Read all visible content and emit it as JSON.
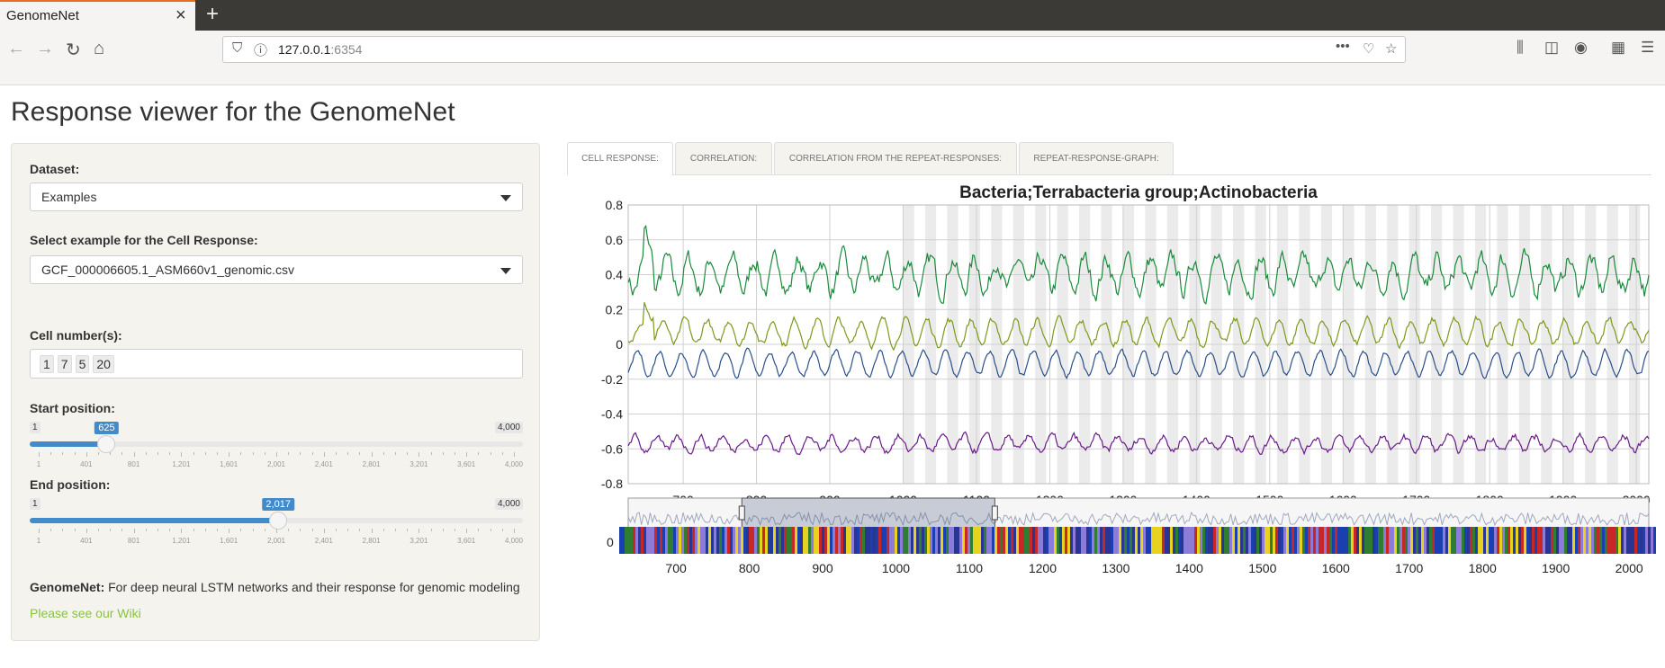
{
  "browser": {
    "tab_title": "GenomeNet",
    "url_host": "127.0.0.1",
    "url_port": ":6354"
  },
  "page": {
    "title": "Response viewer for the GenomeNet"
  },
  "sidebar": {
    "dataset_label": "Dataset:",
    "dataset_value": "Examples",
    "example_label": "Select example for the Cell Response:",
    "example_value": "GCF_000006605.1_ASM660v1_genomic.csv",
    "cells_label": "Cell number(s):",
    "cells": [
      "1",
      "7",
      "5",
      "20"
    ],
    "start": {
      "label": "Start position:",
      "min": "1",
      "max": "4,000",
      "value": "625",
      "fraction": 0.156,
      "ticks": [
        "1",
        "401",
        "801",
        "1,201",
        "1,601",
        "2,001",
        "2,401",
        "2,801",
        "3,201",
        "3,601",
        "4,000"
      ]
    },
    "end": {
      "label": "End position:",
      "min": "1",
      "max": "4,000",
      "value": "2,017",
      "fraction": 0.504,
      "ticks": [
        "1",
        "401",
        "801",
        "1,201",
        "1,601",
        "2,001",
        "2,401",
        "2,801",
        "3,201",
        "3,601",
        "4,000"
      ]
    },
    "footer_bold": "GenomeNet:",
    "footer_text": " For deep neural LSTM networks and their response for genomic modeling",
    "wiki_link": "Please see our Wiki"
  },
  "tabs": [
    {
      "label": "CELL RESPONSE:",
      "active": true
    },
    {
      "label": "CORRELATION:",
      "active": false
    },
    {
      "label": "CORRELATION FROM THE REPEAT-RESPONSES:",
      "active": false
    },
    {
      "label": "REPEAT-RESPONSE-GRAPH:",
      "active": false
    }
  ],
  "chart_data": {
    "type": "line",
    "title": "Bacteria;Terrabacteria group;Actinobacteria",
    "x_range": [
      625,
      2017
    ],
    "xticks": [
      700,
      800,
      900,
      1000,
      1100,
      1200,
      1300,
      1400,
      1500,
      1600,
      1700,
      1800,
      1900,
      2000
    ],
    "ylim": [
      -0.8,
      0.8
    ],
    "yticks": [
      0.8,
      0.6,
      0.4,
      0.2,
      0,
      -0.2,
      -0.4,
      -0.6,
      -0.8
    ],
    "shaded_start": 1000,
    "shaded_period": 30,
    "series": [
      {
        "color": "#1a8a3c",
        "baseline": 0.4,
        "amplitude": 0.09,
        "noise": 0.75
      },
      {
        "color": "#7a9a1a",
        "baseline": 0.07,
        "amplitude": 0.07,
        "noise": 0.3
      },
      {
        "color": "#2a4f8a",
        "baseline": -0.11,
        "amplitude": 0.07,
        "noise": 0.2
      },
      {
        "color": "#6a1a8a",
        "baseline": -0.57,
        "amplitude": 0.04,
        "noise": 0.3
      }
    ],
    "navigator": {
      "range": [
        625,
        2017
      ],
      "window": [
        780,
        1125
      ],
      "zero_label": "0",
      "xticks": [
        700,
        800,
        900,
        1000,
        1100,
        1200,
        1300,
        1400,
        1500,
        1600,
        1700,
        1800,
        1900,
        2000
      ]
    },
    "sequence_palette": [
      "#2e7d32",
      "#c62828",
      "#283593",
      "#e6d21f",
      "#1a3fae",
      "#8d7bd9"
    ]
  }
}
